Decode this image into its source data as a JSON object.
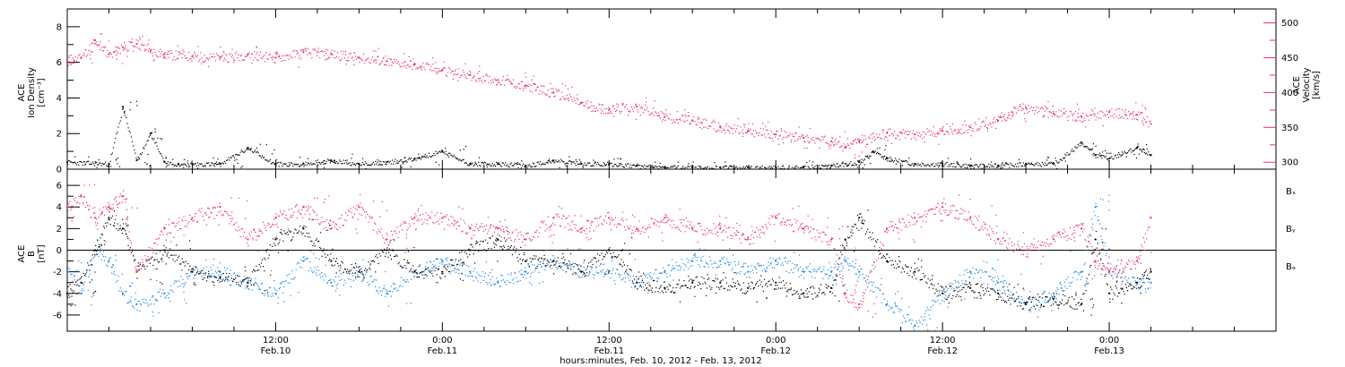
{
  "colors": {
    "axis": "#000000",
    "density": "#000000",
    "velocity": "#e8325f",
    "bx": "#000000",
    "by": "#1e88e5",
    "bz": "#e8325f"
  },
  "xlabel": "hours:minutes, Feb. 10, 2012 - Feb. 13, 2012",
  "time_ticks": [
    {
      "t": 12,
      "time": "12:00",
      "date": "Feb.10"
    },
    {
      "t": 24,
      "time": "0:00",
      "date": "Feb.11"
    },
    {
      "t": 36,
      "time": "12:00",
      "date": "Feb.11"
    },
    {
      "t": 48,
      "time": "0:00",
      "date": "Feb.12"
    },
    {
      "t": 60,
      "time": "12:00",
      "date": "Feb.12"
    },
    {
      "t": 72,
      "time": "0:00",
      "date": "Feb.13"
    }
  ],
  "chart_data": [
    {
      "type": "scatter",
      "panel": "top",
      "x_unit": "hours since Feb. 10, 2012 00:00",
      "xlim": [
        -3,
        84
      ],
      "left_axis": {
        "label_lines": [
          "ACE",
          "Ion Density",
          "[cm⁻³]"
        ],
        "ylim": [
          0,
          9
        ],
        "ticks": [
          0,
          2,
          4,
          6,
          8
        ]
      },
      "right_axis": {
        "label_lines": [
          "ACE",
          "Velocity",
          "[km/s]"
        ],
        "ylim": [
          290,
          520
        ],
        "ticks": [
          300,
          350,
          400,
          450,
          500
        ]
      },
      "series": [
        {
          "name": "Ion Density",
          "axis": "left",
          "x": [
            -3,
            0,
            1,
            2,
            3,
            4,
            5,
            6,
            8,
            10,
            12,
            14,
            16,
            18,
            20,
            22,
            24,
            26,
            28,
            30,
            32,
            34,
            36,
            38,
            40,
            42,
            44,
            46,
            48,
            50,
            52,
            54,
            55,
            56,
            58,
            60,
            62,
            64,
            66,
            68,
            70,
            71,
            72,
            74,
            75
          ],
          "y": [
            0.4,
            0.3,
            3.5,
            0.5,
            2.0,
            0.4,
            0.3,
            0.3,
            0.3,
            1.2,
            0.3,
            0.3,
            0.5,
            0.3,
            0.4,
            0.6,
            1.0,
            0.3,
            0.3,
            0.2,
            0.5,
            0.3,
            0.3,
            0.2,
            0.1,
            0.1,
            0.1,
            0.1,
            0.1,
            0.1,
            0.2,
            0.4,
            1.0,
            0.6,
            0.3,
            0.3,
            0.2,
            0.2,
            0.3,
            0.3,
            1.5,
            0.8,
            0.6,
            1.2,
            0.8
          ]
        },
        {
          "name": "Velocity",
          "axis": "right",
          "x": [
            -3,
            -2,
            -1,
            0,
            1,
            2,
            3,
            4,
            6,
            8,
            10,
            12,
            14,
            16,
            18,
            20,
            22,
            24,
            26,
            28,
            30,
            32,
            34,
            36,
            38,
            40,
            42,
            44,
            46,
            48,
            50,
            52,
            53,
            54,
            56,
            58,
            60,
            62,
            64,
            65,
            66,
            68,
            70,
            72,
            74,
            75
          ],
          "y": [
            445,
            450,
            475,
            455,
            465,
            470,
            460,
            455,
            452,
            450,
            455,
            450,
            458,
            455,
            450,
            445,
            440,
            432,
            425,
            418,
            410,
            400,
            385,
            375,
            380,
            365,
            360,
            350,
            345,
            340,
            335,
            330,
            322,
            330,
            342,
            340,
            345,
            350,
            360,
            372,
            378,
            370,
            365,
            372,
            368,
            355
          ]
        }
      ]
    },
    {
      "type": "scatter",
      "panel": "bottom",
      "x_unit": "hours since Feb. 10, 2012 00:00",
      "xlim": [
        -3,
        84
      ],
      "left_axis": {
        "label_lines": [
          "ACE",
          "B",
          "[nT]"
        ],
        "ylim": [
          -7.5,
          7.5
        ],
        "ticks": [
          -6,
          -4,
          -2,
          0,
          2,
          4,
          6
        ]
      },
      "zero_line": true,
      "legend": [
        "Bₓ",
        "Bᵧ",
        "Bₔ"
      ],
      "legend_placement": "right",
      "series": [
        {
          "name": "Bx",
          "x": [
            -3,
            -2,
            -1,
            0,
            1,
            2,
            4,
            6,
            8,
            10,
            12,
            14,
            16,
            18,
            20,
            22,
            24,
            26,
            28,
            30,
            32,
            34,
            36,
            38,
            40,
            42,
            44,
            46,
            48,
            50,
            52,
            53,
            54,
            56,
            58,
            60,
            62,
            64,
            66,
            68,
            70,
            71,
            72,
            74,
            75
          ],
          "y": [
            -4,
            -3,
            0,
            3,
            2,
            -2,
            0,
            -2,
            -2.5,
            -3,
            1,
            2,
            -1,
            -2,
            0,
            -2,
            -2,
            0,
            1,
            -1,
            -1,
            -2,
            0,
            -3,
            -3.5,
            -3,
            -3,
            -3.5,
            -3,
            -4,
            -3.5,
            1,
            3,
            -1,
            -2,
            -4,
            -3.5,
            -4,
            -5,
            -4.5,
            -5,
            1,
            -4,
            -3,
            -2
          ]
        },
        {
          "name": "By",
          "x": [
            -3,
            -2,
            -1,
            0,
            1,
            2,
            4,
            6,
            8,
            10,
            12,
            14,
            16,
            18,
            20,
            22,
            24,
            26,
            28,
            30,
            32,
            34,
            36,
            38,
            40,
            42,
            44,
            46,
            48,
            50,
            52,
            53,
            54,
            56,
            58,
            60,
            62,
            64,
            66,
            68,
            70,
            71,
            72,
            74,
            75
          ],
          "y": [
            -2,
            -4,
            0,
            -1,
            -4,
            -5,
            -4,
            -2,
            -2,
            -3,
            -4,
            -1,
            -3,
            -2,
            -4,
            -2,
            -1,
            -2,
            -3,
            -2,
            -1,
            -2,
            -2,
            -3,
            -2,
            -1,
            -1,
            -2,
            -1,
            -2,
            -2,
            -1,
            -2,
            -5,
            -7,
            -4,
            -2,
            -3,
            -5,
            -4,
            -2,
            4,
            -2,
            -3,
            -3
          ]
        },
        {
          "name": "Bz",
          "x": [
            -3,
            -2,
            -1,
            0,
            1,
            2,
            4,
            6,
            8,
            10,
            12,
            14,
            16,
            18,
            20,
            22,
            24,
            26,
            28,
            30,
            32,
            34,
            36,
            38,
            40,
            42,
            44,
            46,
            48,
            50,
            52,
            53,
            54,
            56,
            58,
            60,
            62,
            64,
            66,
            68,
            70,
            71,
            72,
            74,
            75
          ],
          "y": [
            4,
            5,
            3,
            4,
            5,
            -2,
            2,
            3,
            4,
            1,
            3,
            4,
            2,
            4,
            1,
            3,
            3,
            2,
            2,
            1,
            3,
            2,
            3,
            2,
            3,
            2,
            2,
            1,
            3,
            2,
            1,
            -4,
            -5,
            2,
            3,
            4,
            3,
            1,
            0,
            1,
            2,
            -1,
            -2,
            -1,
            3
          ]
        }
      ]
    }
  ]
}
